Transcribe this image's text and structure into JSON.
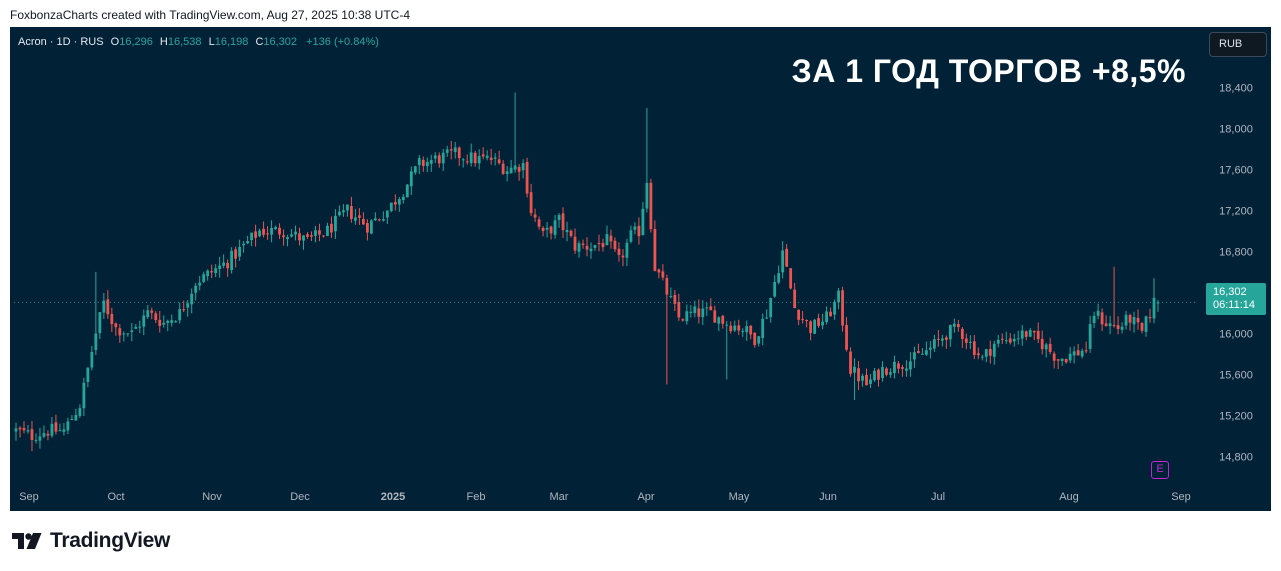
{
  "caption": "FoxbonzaCharts created with TradingView.com, Aug 27, 2025 10:38 UTC-4",
  "brand": {
    "name": "TradingView",
    "icon": "tradingview-logo-icon"
  },
  "legend": {
    "symbol": "Acron · 1D · RUS",
    "open_label": "O",
    "open": "16,296",
    "high_label": "H",
    "high": "16,538",
    "low_label": "L",
    "low": "16,198",
    "close_label": "C",
    "close": "16,302",
    "change": "+136 (+0.84%)"
  },
  "currency_button": "RUB",
  "headline": "ЗА 1 ГОД ТОРГОВ +8,5%",
  "price_tag": {
    "price": "16,302",
    "countdown": "06:11:14"
  },
  "earnings_marker": {
    "label": "E",
    "icon": "earnings-icon"
  },
  "colors": {
    "background": "#012236",
    "up": "#26a69a",
    "down": "#ef5350",
    "text": "#b2b5be",
    "accent": "#c026d3"
  },
  "chart_data": {
    "type": "candlestick",
    "symbol": "Acron",
    "interval": "1D",
    "currency": "RUB",
    "ylim": [
      14500,
      18600
    ],
    "y_ticks": [
      14800,
      15200,
      15600,
      16000,
      16400,
      16800,
      17200,
      17600,
      18000,
      18400
    ],
    "y_tick_labels": [
      "14,800",
      "15,200",
      "15,600",
      "16,000",
      "16,400",
      "16,800",
      "17,200",
      "17,600",
      "18,000",
      "18,400"
    ],
    "x_tick_labels": [
      "Sep",
      "Oct",
      "Nov",
      "Dec",
      "2025",
      "Feb",
      "Mar",
      "Apr",
      "May",
      "Jun",
      "Jul",
      "Aug",
      "Sep"
    ],
    "last_price": 16302,
    "grid": false,
    "close_path": [
      [
        0,
        15050
      ],
      [
        4,
        15000
      ],
      [
        8,
        15050
      ],
      [
        12,
        15050
      ],
      [
        16,
        15300
      ],
      [
        20,
        16000
      ],
      [
        22,
        16300
      ],
      [
        25,
        16050
      ],
      [
        29,
        16000
      ],
      [
        33,
        16200
      ],
      [
        37,
        16100
      ],
      [
        41,
        16200
      ],
      [
        45,
        16500
      ],
      [
        49,
        16600
      ],
      [
        53,
        16700
      ],
      [
        57,
        16850
      ],
      [
        61,
        17000
      ],
      [
        67,
        17000
      ],
      [
        73,
        16900
      ],
      [
        78,
        17000
      ],
      [
        83,
        17200
      ],
      [
        88,
        17050
      ],
      [
        93,
        17200
      ],
      [
        97,
        17400
      ],
      [
        101,
        17650
      ],
      [
        105,
        17700
      ],
      [
        110,
        17750
      ],
      [
        115,
        17700
      ],
      [
        119,
        17700
      ],
      [
        123,
        17600
      ],
      [
        127,
        17650
      ],
      [
        129,
        17200
      ],
      [
        132,
        16950
      ],
      [
        136,
        17100
      ],
      [
        140,
        16850
      ],
      [
        144,
        16850
      ],
      [
        148,
        16900
      ],
      [
        151,
        16700
      ],
      [
        154,
        16950
      ],
      [
        156,
        17000
      ],
      [
        158,
        17500
      ],
      [
        160,
        16650
      ],
      [
        163,
        16400
      ],
      [
        166,
        16150
      ],
      [
        170,
        16200
      ],
      [
        174,
        16200
      ],
      [
        178,
        16100
      ],
      [
        182,
        16050
      ],
      [
        185,
        15950
      ],
      [
        188,
        16200
      ],
      [
        190,
        16500
      ],
      [
        192,
        16800
      ],
      [
        195,
        16250
      ],
      [
        199,
        16050
      ],
      [
        203,
        16150
      ],
      [
        206,
        16350
      ],
      [
        209,
        15650
      ],
      [
        213,
        15500
      ],
      [
        217,
        15650
      ],
      [
        221,
        15700
      ],
      [
        225,
        15750
      ],
      [
        229,
        15850
      ],
      [
        233,
        16000
      ],
      [
        236,
        16050
      ],
      [
        239,
        15900
      ],
      [
        242,
        15750
      ],
      [
        245,
        15900
      ],
      [
        249,
        15950
      ],
      [
        253,
        16000
      ],
      [
        257,
        15900
      ],
      [
        261,
        15750
      ],
      [
        265,
        15800
      ],
      [
        268,
        15850
      ],
      [
        270,
        16200
      ],
      [
        273,
        16100
      ],
      [
        276,
        16050
      ],
      [
        279,
        16150
      ],
      [
        282,
        16000
      ],
      [
        285,
        16302
      ]
    ],
    "spikes": [
      {
        "day": 20,
        "high": 16600
      },
      {
        "day": 125,
        "high": 18350
      },
      {
        "day": 158,
        "high": 18200
      },
      {
        "day": 192,
        "high": 16900
      },
      {
        "day": 275,
        "high": 16650
      },
      {
        "day": 285,
        "high": 16538
      }
    ],
    "dips": [
      {
        "day": 4,
        "low": 14850
      },
      {
        "day": 163,
        "low": 15500
      },
      {
        "day": 178,
        "low": 15550
      },
      {
        "day": 210,
        "low": 15350
      }
    ]
  }
}
